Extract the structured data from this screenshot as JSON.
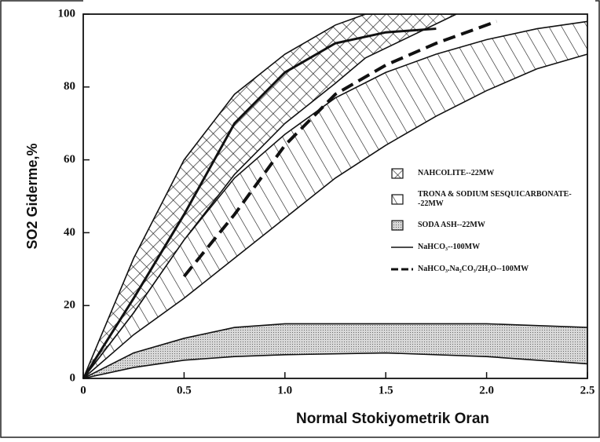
{
  "chart_data": {
    "type": "band-line",
    "xlabel": "Normal Stokiyometrik Oran",
    "ylabel": "SO2 Giderme,%",
    "xlim": [
      0,
      2.5
    ],
    "ylim": [
      0,
      100
    ],
    "xticks": [
      0,
      0.5,
      {
        "value": 1,
        "label": "1.0"
      },
      1.5,
      {
        "value": 2,
        "label": "2.0"
      },
      2.5
    ],
    "yticks": [
      0,
      20,
      40,
      60,
      80,
      100
    ],
    "series": [
      {
        "name": "NAHCOLITE--22MW",
        "type": "band",
        "pattern": "crosshatch",
        "color": "#111111",
        "x": [
          0,
          0.25,
          0.5,
          0.75,
          1.0,
          1.25,
          1.4,
          1.85
        ],
        "upper": [
          0,
          33,
          60,
          78,
          89,
          97,
          100,
          100
        ],
        "lower": [
          0,
          18,
          38,
          56,
          70,
          81,
          88,
          100
        ]
      },
      {
        "name": "TRONA & SODIUM SESQUICARBONATE--22MW",
        "type": "band",
        "pattern": "diagonal",
        "color": "#111111",
        "x": [
          0,
          0.25,
          0.5,
          0.75,
          1.0,
          1.25,
          1.5,
          1.75,
          2.0,
          2.25,
          2.5
        ],
        "upper": [
          0,
          18,
          38,
          55,
          67,
          77,
          84,
          89,
          93,
          96,
          98
        ],
        "lower": [
          0,
          12,
          22,
          33,
          44,
          55,
          64,
          72,
          79,
          85,
          89
        ]
      },
      {
        "name": "SODA ASH--22MW",
        "type": "band",
        "pattern": "dots",
        "color": "#111111",
        "x": [
          0,
          0.25,
          0.5,
          0.75,
          1.0,
          1.5,
          2.0,
          2.5
        ],
        "upper": [
          0,
          7,
          11,
          14,
          15,
          15,
          15,
          14
        ],
        "lower": [
          0,
          3,
          5,
          6,
          6.5,
          7,
          6,
          4
        ]
      },
      {
        "name": "NaHCO₃--100MW",
        "type": "line",
        "dash": false,
        "color": "#111111",
        "x": [
          0,
          0.25,
          0.5,
          0.75,
          1.0,
          1.25,
          1.5,
          1.75
        ],
        "values": [
          0,
          22,
          45,
          70,
          84,
          92,
          95,
          96
        ]
      },
      {
        "name": "NaHCO₃.Na₂CO₃/2H₂O--100MW",
        "type": "line",
        "dash": true,
        "color": "#111111",
        "x": [
          0.5,
          0.75,
          1.0,
          1.25,
          1.5,
          1.75,
          2.0,
          2.05
        ],
        "values": [
          28,
          45,
          64,
          78,
          86,
          92,
          97,
          98
        ]
      }
    ]
  }
}
